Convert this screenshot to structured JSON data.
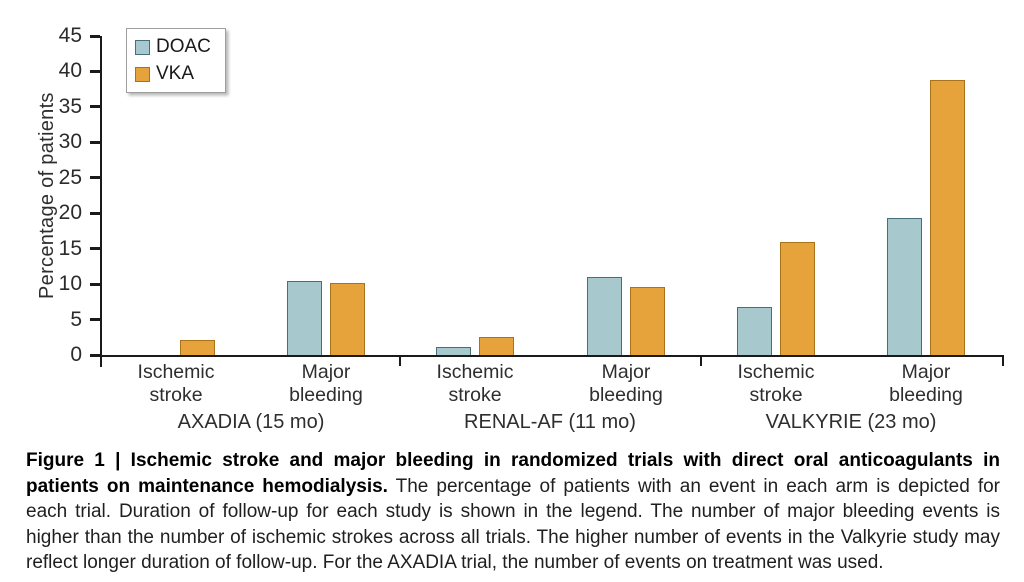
{
  "caption": {
    "label": "Figure 1 | ",
    "bold": "Ischemic stroke and major bleeding in randomized trials with direct oral anticoagulants in patients on maintenance hemodialysis.",
    "body": " The percentage of patients with an event in each arm is depicted for each trial. Duration of follow-up for each study is shown in the legend. The number of major bleeding events is higher than the number of ischemic strokes across all trials. The higher number of events in the Valkyrie study may reflect longer duration of follow-up. For the AXADIA trial, the number of events on treatment was used."
  },
  "chart_data": {
    "type": "bar",
    "title": "",
    "xlabel": "",
    "ylabel": "Percentage of patients",
    "ylim": [
      0,
      45
    ],
    "yticks": [
      0,
      5,
      10,
      15,
      20,
      25,
      30,
      35,
      40,
      45
    ],
    "grid": false,
    "legend_position": "top-left inside plot",
    "group_labels": [
      "AXADIA (15 mo)",
      "RENAL-AF (11 mo)",
      "VALKYRIE (23 mo)"
    ],
    "categories": [
      "Ischemic stroke",
      "Major bleeding",
      "Ischemic stroke",
      "Major bleeding",
      "Ischemic stroke",
      "Major bleeding"
    ],
    "series": [
      {
        "name": "DOAC",
        "fill": "#a7c8cc",
        "border": "#456f7c",
        "values": [
          0,
          10.5,
          1.1,
          11.0,
          6.8,
          19.3
        ]
      },
      {
        "name": "VKA",
        "fill": "#e6a33b",
        "border": "#a9731c",
        "values": [
          2.1,
          10.2,
          2.6,
          9.6,
          15.9,
          38.8
        ]
      }
    ],
    "colors": {
      "axis": "#1a1a1a",
      "label_text": "#2e2e2e"
    }
  }
}
